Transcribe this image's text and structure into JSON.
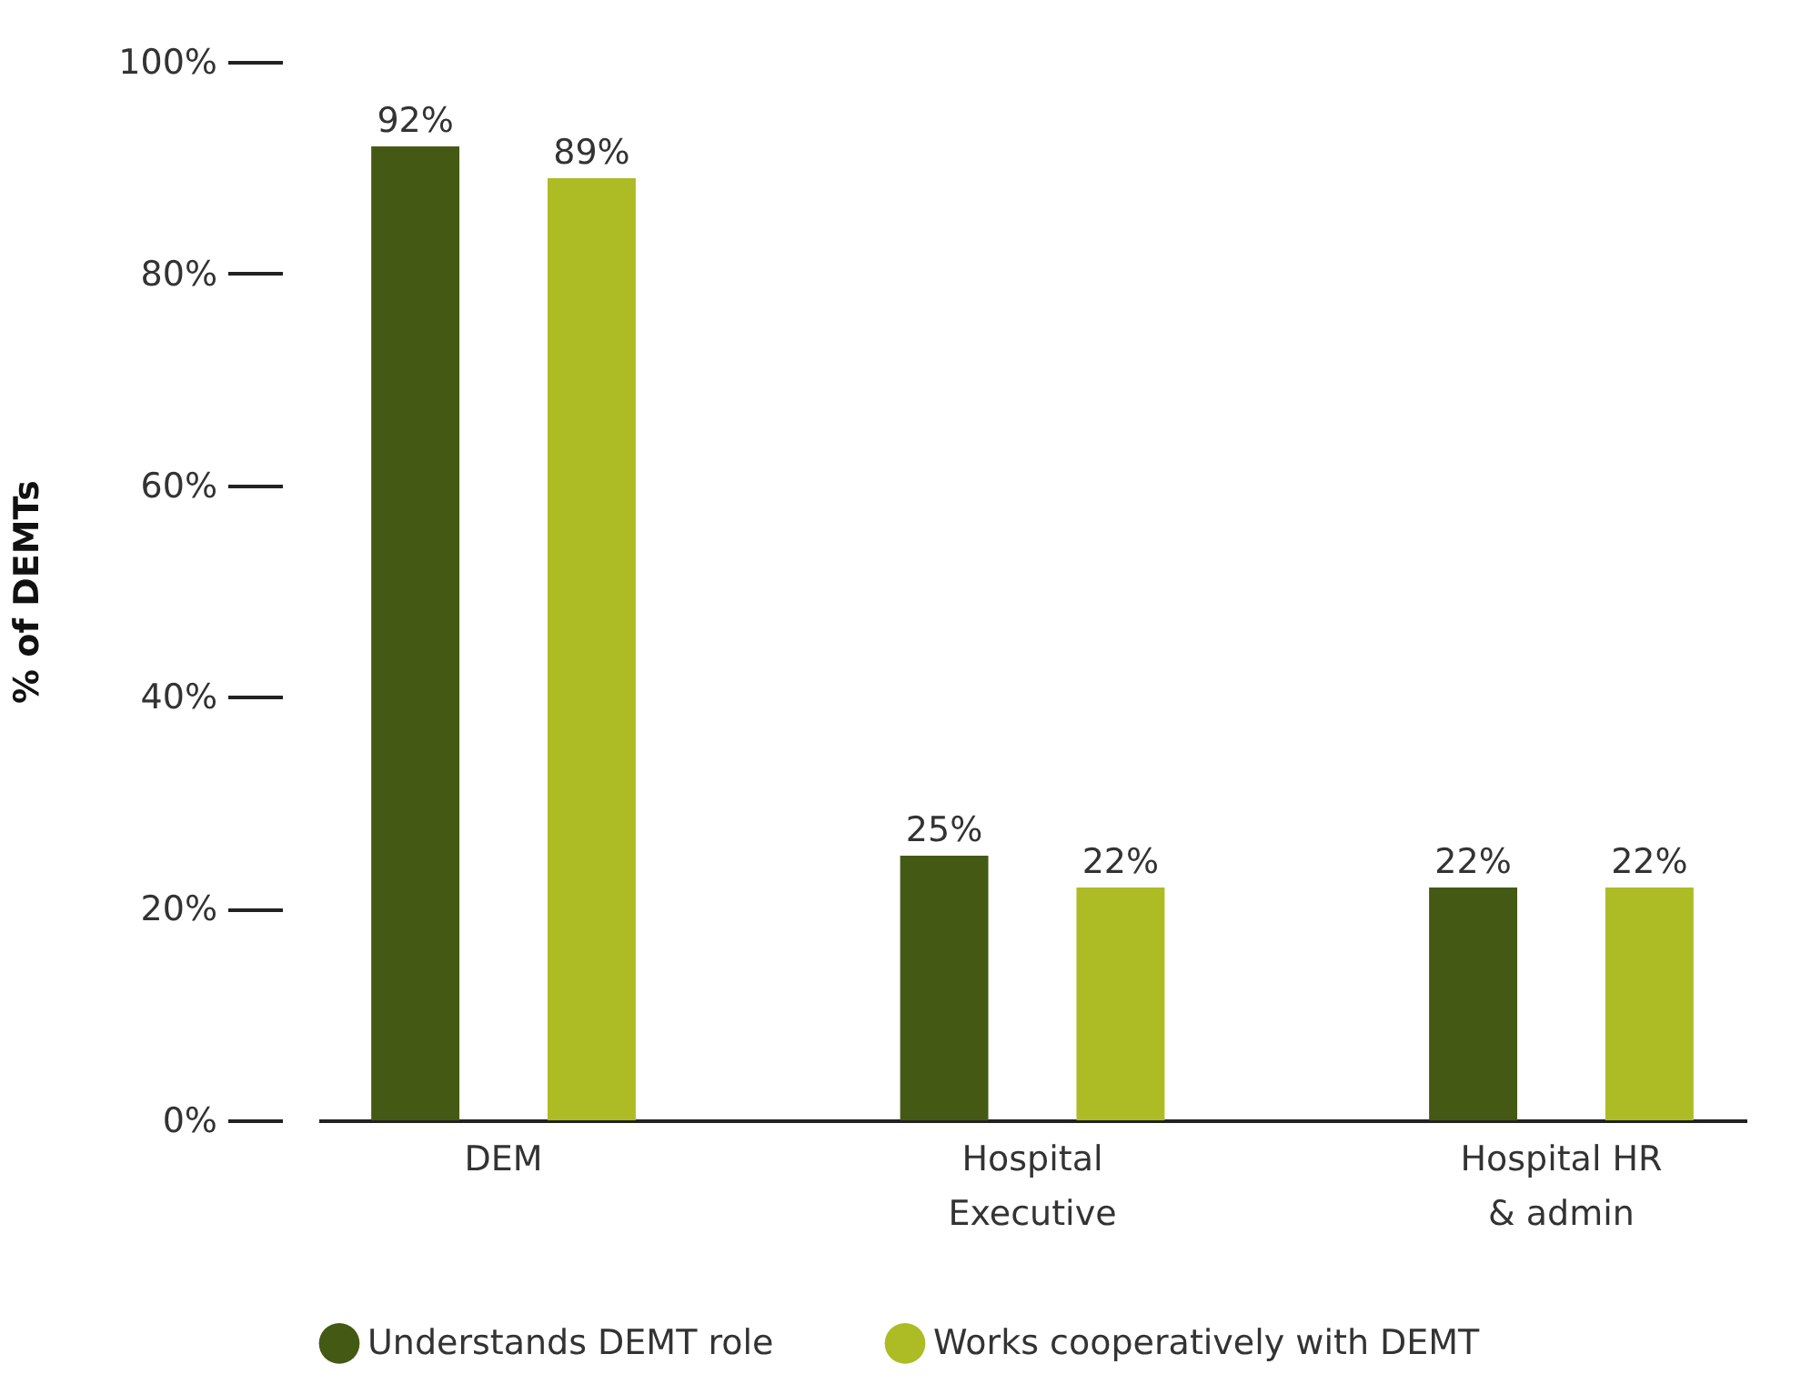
{
  "chart_data": {
    "type": "bar",
    "ylabel": "% of DEMTs",
    "categories": [
      "DEM",
      "Hospital\nExecutive",
      "Hospital HR\n& admin"
    ],
    "series": [
      {
        "name": "Understands DEMT role",
        "color": "#445a14",
        "values": [
          92,
          25,
          22
        ],
        "value_labels": [
          "92%",
          "25%",
          "22%"
        ]
      },
      {
        "name": "Works cooperatively with DEMT",
        "color": "#adbb25",
        "values": [
          89,
          22,
          22
        ],
        "value_labels": [
          "89%",
          "22%",
          "22%"
        ]
      }
    ],
    "ylim": [
      0,
      100
    ],
    "yticks": [
      {
        "value": 0,
        "label": "0%"
      },
      {
        "value": 20,
        "label": "20%"
      },
      {
        "value": 40,
        "label": "40%"
      },
      {
        "value": 60,
        "label": "60%"
      },
      {
        "value": 80,
        "label": "80%"
      },
      {
        "value": 100,
        "label": "100%"
      }
    ],
    "grid": false,
    "legend": "bottom"
  }
}
